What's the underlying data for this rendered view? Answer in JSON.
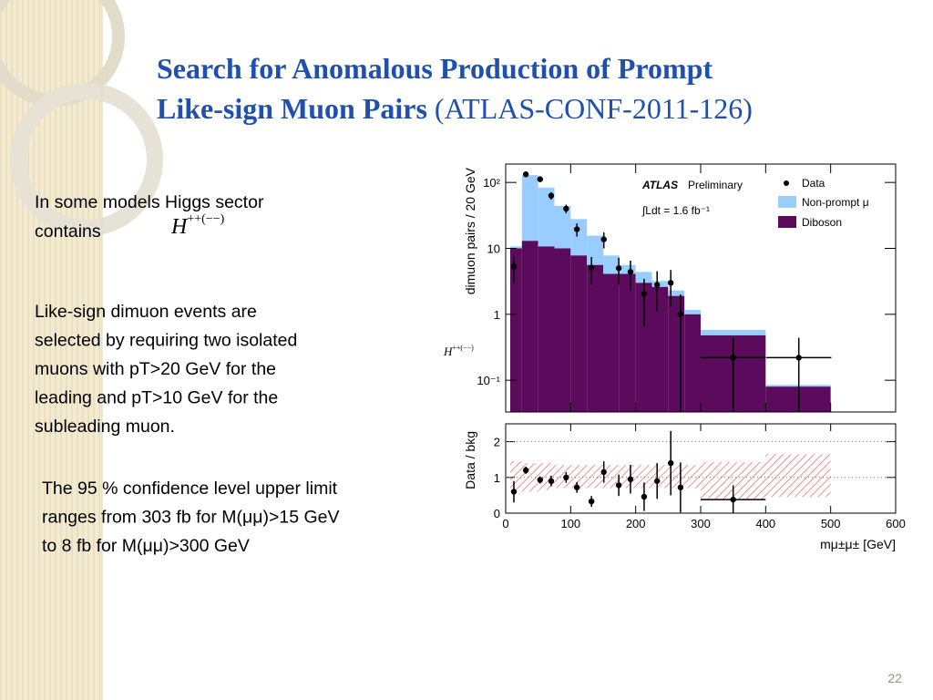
{
  "title_line1": "Search for Anomalous Production of Prompt",
  "title_line2_bold": "Like-sign Muon Pairs",
  "title_line2_plain": "(ATLAS-CONF-2011-126)",
  "paragraphs": [
    [
      "In some models Higgs sector",
      "contains"
    ],
    [
      "Like-sign dimuon events are",
      "selected by requiring two isolated",
      "muons with pT>20 GeV for the",
      "leading and pT>10 GeV for the",
      "subleading muon."
    ],
    [
      "The 95 % confidence level upper limit",
      "ranges from 303 fb for M(μμ)>15 GeV",
      "to 8 fb for M(μμ)>300 GeV"
    ]
  ],
  "formula": {
    "base": "H",
    "sup": "++(−−)"
  },
  "page_number": "22",
  "chart_data": {
    "type": "histogram",
    "bins": [
      7,
      25,
      50,
      75,
      100,
      125,
      150,
      175,
      200,
      225,
      250,
      275,
      300,
      400,
      500
    ],
    "series": [
      {
        "name": "Diboson",
        "color": "#5c0a5c",
        "values": [
          10,
          13,
          10.7,
          10,
          7.8,
          5.6,
          4.1,
          4.1,
          3.0,
          2.6,
          1.9,
          1.0,
          0.48,
          0.08
        ]
      },
      {
        "name": "Non-prompt μ",
        "color": "#99ccff",
        "values": [
          0.7,
          116,
          73,
          34,
          20,
          10,
          3.7,
          1.5,
          1.4,
          0.6,
          0.4,
          0.17,
          0.1,
          0.005
        ]
      }
    ],
    "data": {
      "name": "Data",
      "x": [
        12.6,
        31,
        53,
        70,
        93,
        109.6,
        132,
        151,
        174,
        192,
        213,
        233,
        254,
        269,
        350,
        451
      ],
      "values": [
        5.3,
        133,
        112,
        63,
        40,
        19.5,
        5.1,
        13.7,
        5.0,
        4.4,
        2.05,
        2.8,
        3.0,
        1.0,
        0.22,
        0.22
      ],
      "yerr": [
        2.3,
        12,
        11,
        8,
        6,
        4.4,
        2.3,
        3.7,
        2.2,
        2.1,
        1.4,
        1.7,
        1.7,
        1.0,
        0.22,
        0.22
      ],
      "xerr": [
        null,
        null,
        null,
        null,
        null,
        null,
        null,
        null,
        null,
        null,
        null,
        null,
        null,
        null,
        50,
        50
      ]
    },
    "ylabel": "dimuon pairs / 20 GeV",
    "log_scale": true,
    "ylim": [
      0.033,
      190
    ],
    "yticks": [
      {
        "value": 100,
        "label": "10²"
      },
      10,
      1,
      {
        "value": 0.1,
        "label": "10⁻¹"
      }
    ],
    "xlim": [
      0,
      600
    ],
    "xticks": [
      0,
      100,
      200,
      300,
      400,
      500,
      600
    ],
    "xlabel": "mμ±μ± [GeV]",
    "annotations": {
      "experiment": "ATLAS",
      "status": "Preliminary",
      "lumi": "∫Ldt = 1.6 fb⁻¹",
      "label_base": "H",
      "label_sup": "++(−−)"
    },
    "ratio": {
      "ylabel": "Data / bkg",
      "ylim": [
        0,
        2.5
      ],
      "yticks": [
        0,
        1,
        2
      ],
      "grid": true,
      "x": [
        12.6,
        31,
        53,
        70,
        93,
        109.6,
        132,
        151,
        174,
        192,
        213,
        233,
        254,
        269,
        350
      ],
      "values": [
        0.6,
        1.2,
        0.93,
        0.9,
        1.0,
        0.72,
        0.33,
        1.15,
        0.78,
        0.95,
        0.46,
        0.9,
        1.4,
        0.72,
        0.38
      ],
      "yerr": [
        0.3,
        0.1,
        0.1,
        0.15,
        0.15,
        0.15,
        0.15,
        0.3,
        0.3,
        0.4,
        0.4,
        0.5,
        0.9,
        0.7,
        0.4
      ],
      "xerr": [
        null,
        null,
        null,
        null,
        null,
        null,
        null,
        null,
        null,
        null,
        null,
        null,
        null,
        null,
        50
      ],
      "band": {
        "color": "#e03030",
        "lower": [
          0.6,
          0.6,
          0.65,
          0.7,
          0.7,
          0.7,
          0.7,
          0.7,
          0.7,
          0.7,
          0.7,
          0.7,
          0.4,
          0.45
        ],
        "upper": [
          1.45,
          1.4,
          1.4,
          1.35,
          1.35,
          1.35,
          1.35,
          1.35,
          1.35,
          1.35,
          1.35,
          1.35,
          1.43,
          1.65
        ]
      }
    }
  }
}
